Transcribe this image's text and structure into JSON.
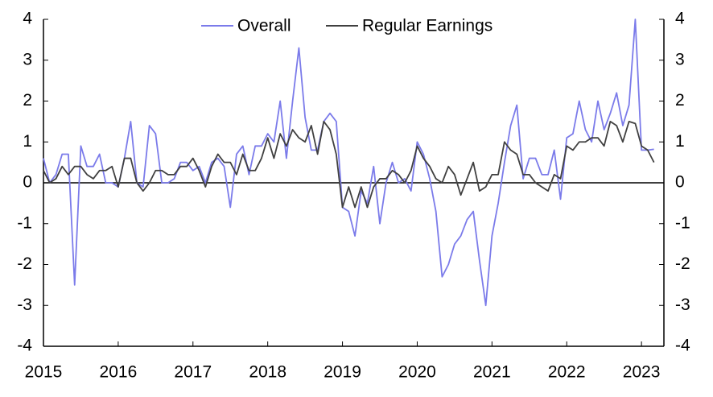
{
  "chart_data": {
    "type": "line",
    "x": [
      2015,
      2015.083,
      2015.167,
      2015.25,
      2015.333,
      2015.417,
      2015.5,
      2015.583,
      2015.667,
      2015.75,
      2015.833,
      2015.917,
      2016,
      2016.083,
      2016.167,
      2016.25,
      2016.333,
      2016.417,
      2016.5,
      2016.583,
      2016.667,
      2016.75,
      2016.833,
      2016.917,
      2017,
      2017.083,
      2017.167,
      2017.25,
      2017.333,
      2017.417,
      2017.5,
      2017.583,
      2017.667,
      2017.75,
      2017.833,
      2017.917,
      2018,
      2018.083,
      2018.167,
      2018.25,
      2018.333,
      2018.417,
      2018.5,
      2018.583,
      2018.667,
      2018.75,
      2018.833,
      2018.917,
      2019,
      2019.083,
      2019.167,
      2019.25,
      2019.333,
      2019.417,
      2019.5,
      2019.583,
      2019.667,
      2019.75,
      2019.833,
      2019.917,
      2020,
      2020.083,
      2020.167,
      2020.25,
      2020.333,
      2020.417,
      2020.5,
      2020.583,
      2020.667,
      2020.75,
      2020.833,
      2020.917,
      2021,
      2021.083,
      2021.167,
      2021.25,
      2021.333,
      2021.417,
      2021.5,
      2021.583,
      2021.667,
      2021.75,
      2021.833,
      2021.917,
      2022,
      2022.083,
      2022.167,
      2022.25,
      2022.333,
      2022.417,
      2022.5,
      2022.583,
      2022.667,
      2022.75,
      2022.833,
      2022.917,
      2023,
      2023.083,
      2023.167
    ],
    "series": [
      {
        "name": "Overall",
        "color": "#7b7bea",
        "values": [
          0.6,
          0.0,
          0.2,
          0.7,
          0.7,
          -2.5,
          0.9,
          0.4,
          0.4,
          0.7,
          0.0,
          0.0,
          -0.1,
          0.6,
          1.5,
          0.0,
          -0.1,
          1.4,
          1.2,
          0.0,
          0.0,
          0.1,
          0.5,
          0.5,
          0.3,
          0.4,
          0.0,
          0.5,
          0.6,
          0.4,
          -0.6,
          0.7,
          0.9,
          0.2,
          0.9,
          0.9,
          1.2,
          1.0,
          2.0,
          0.6,
          2.0,
          3.3,
          1.6,
          0.8,
          0.8,
          1.5,
          1.7,
          1.5,
          -0.6,
          -0.7,
          -1.3,
          -0.2,
          -0.5,
          0.4,
          -1.0,
          0.0,
          0.5,
          0.0,
          0.1,
          -0.2,
          1.0,
          0.7,
          0.1,
          -0.7,
          -2.3,
          -2.0,
          -1.5,
          -1.3,
          -0.9,
          -0.7,
          -1.9,
          -3.0,
          -1.3,
          -0.5,
          0.5,
          1.4,
          1.9,
          0.1,
          0.6,
          0.6,
          0.2,
          0.2,
          0.8,
          -0.4,
          1.1,
          1.2,
          2.0,
          1.3,
          1.0,
          2.0,
          1.3,
          1.7,
          2.2,
          1.4,
          1.9,
          4.0,
          0.8,
          0.8,
          0.82
        ]
      },
      {
        "name": "Regular Earnings",
        "color": "#404040",
        "values": [
          0.3,
          0.0,
          0.1,
          0.4,
          0.2,
          0.4,
          0.4,
          0.2,
          0.1,
          0.3,
          0.3,
          0.4,
          -0.1,
          0.6,
          0.6,
          0.0,
          -0.2,
          0.0,
          0.3,
          0.3,
          0.2,
          0.2,
          0.4,
          0.4,
          0.6,
          0.3,
          -0.1,
          0.4,
          0.7,
          0.5,
          0.5,
          0.2,
          0.7,
          0.3,
          0.3,
          0.6,
          1.1,
          0.6,
          1.2,
          0.9,
          1.3,
          1.1,
          1.0,
          1.4,
          0.7,
          1.5,
          1.3,
          0.7,
          -0.6,
          -0.1,
          -0.6,
          -0.1,
          -0.6,
          -0.1,
          0.1,
          0.1,
          0.3,
          0.2,
          0.0,
          0.3,
          0.9,
          0.6,
          0.4,
          0.1,
          0.0,
          0.4,
          0.2,
          -0.3,
          0.1,
          0.5,
          -0.2,
          -0.1,
          0.2,
          0.2,
          1.0,
          0.8,
          0.7,
          0.2,
          0.2,
          0.0,
          -0.1,
          -0.2,
          0.2,
          0.1,
          0.9,
          0.8,
          1.0,
          1.0,
          1.1,
          1.1,
          0.9,
          1.5,
          1.4,
          1.0,
          1.5,
          1.45,
          0.9,
          0.8,
          0.5
        ]
      }
    ],
    "xlim": [
      2015,
      2023.3
    ],
    "xticks": [
      2015,
      2016,
      2017,
      2018,
      2019,
      2020,
      2021,
      2022,
      2023
    ],
    "ylim": [
      -4,
      4
    ],
    "yticks": [
      -4,
      -3,
      -2,
      -1,
      0,
      1,
      2,
      3,
      4
    ],
    "y2lim": [
      -4,
      4
    ],
    "y2ticks": [
      -4,
      -3,
      -2,
      -1,
      0,
      1,
      2,
      3,
      4
    ],
    "legend": "top"
  }
}
